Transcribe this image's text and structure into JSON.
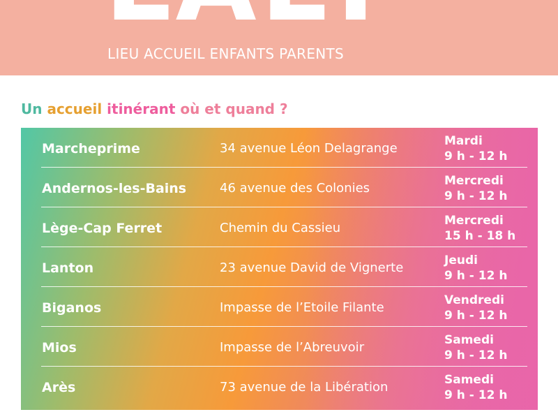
{
  "header": {
    "logo_text": "LAEP",
    "subtitle": "LIEU ACCUEIL ENFANTS PARENTS"
  },
  "section_title": {
    "words": [
      {
        "text": "Un",
        "color": "#4fb9a0"
      },
      {
        "text": "accueil",
        "color": "#e6a031"
      },
      {
        "text": "itinérant",
        "color": "#ee5d9d"
      },
      {
        "text": "où et quand ?",
        "color": "#ee7f9a"
      }
    ]
  },
  "colors": {
    "header_bg": "#f4b0a0",
    "gradient_start": "#52c7a6",
    "gradient_mid": "#f79a3a",
    "gradient_end": "#e766b5",
    "text_on_gradient": "#ffffff"
  },
  "schedule": [
    {
      "city": "Marcheprime",
      "address": "34 avenue Léon Delagrange",
      "day": "Mardi",
      "hours": "9 h - 12 h"
    },
    {
      "city": "Andernos-les-Bains",
      "address": "46 avenue des Colonies",
      "day": "Mercredi",
      "hours": "9 h - 12 h"
    },
    {
      "city": "Lège-Cap Ferret",
      "address": "Chemin du Cassieu",
      "day": "Mercredi",
      "hours": "15 h - 18 h"
    },
    {
      "city": "Lanton",
      "address": "23 avenue David de Vignerte",
      "day": "Jeudi",
      "hours": "9 h - 12 h"
    },
    {
      "city": "Biganos",
      "address": "Impasse de l’Etoile Filante",
      "day": "Vendredi",
      "hours": "9 h - 12 h"
    },
    {
      "city": "Mios",
      "address": "Impasse de l’Abreuvoir",
      "day": "Samedi",
      "hours": "9 h - 12 h"
    },
    {
      "city": "Arès",
      "address": "73 avenue de la Libération",
      "day": "Samedi",
      "hours": "9 h - 12 h"
    }
  ]
}
